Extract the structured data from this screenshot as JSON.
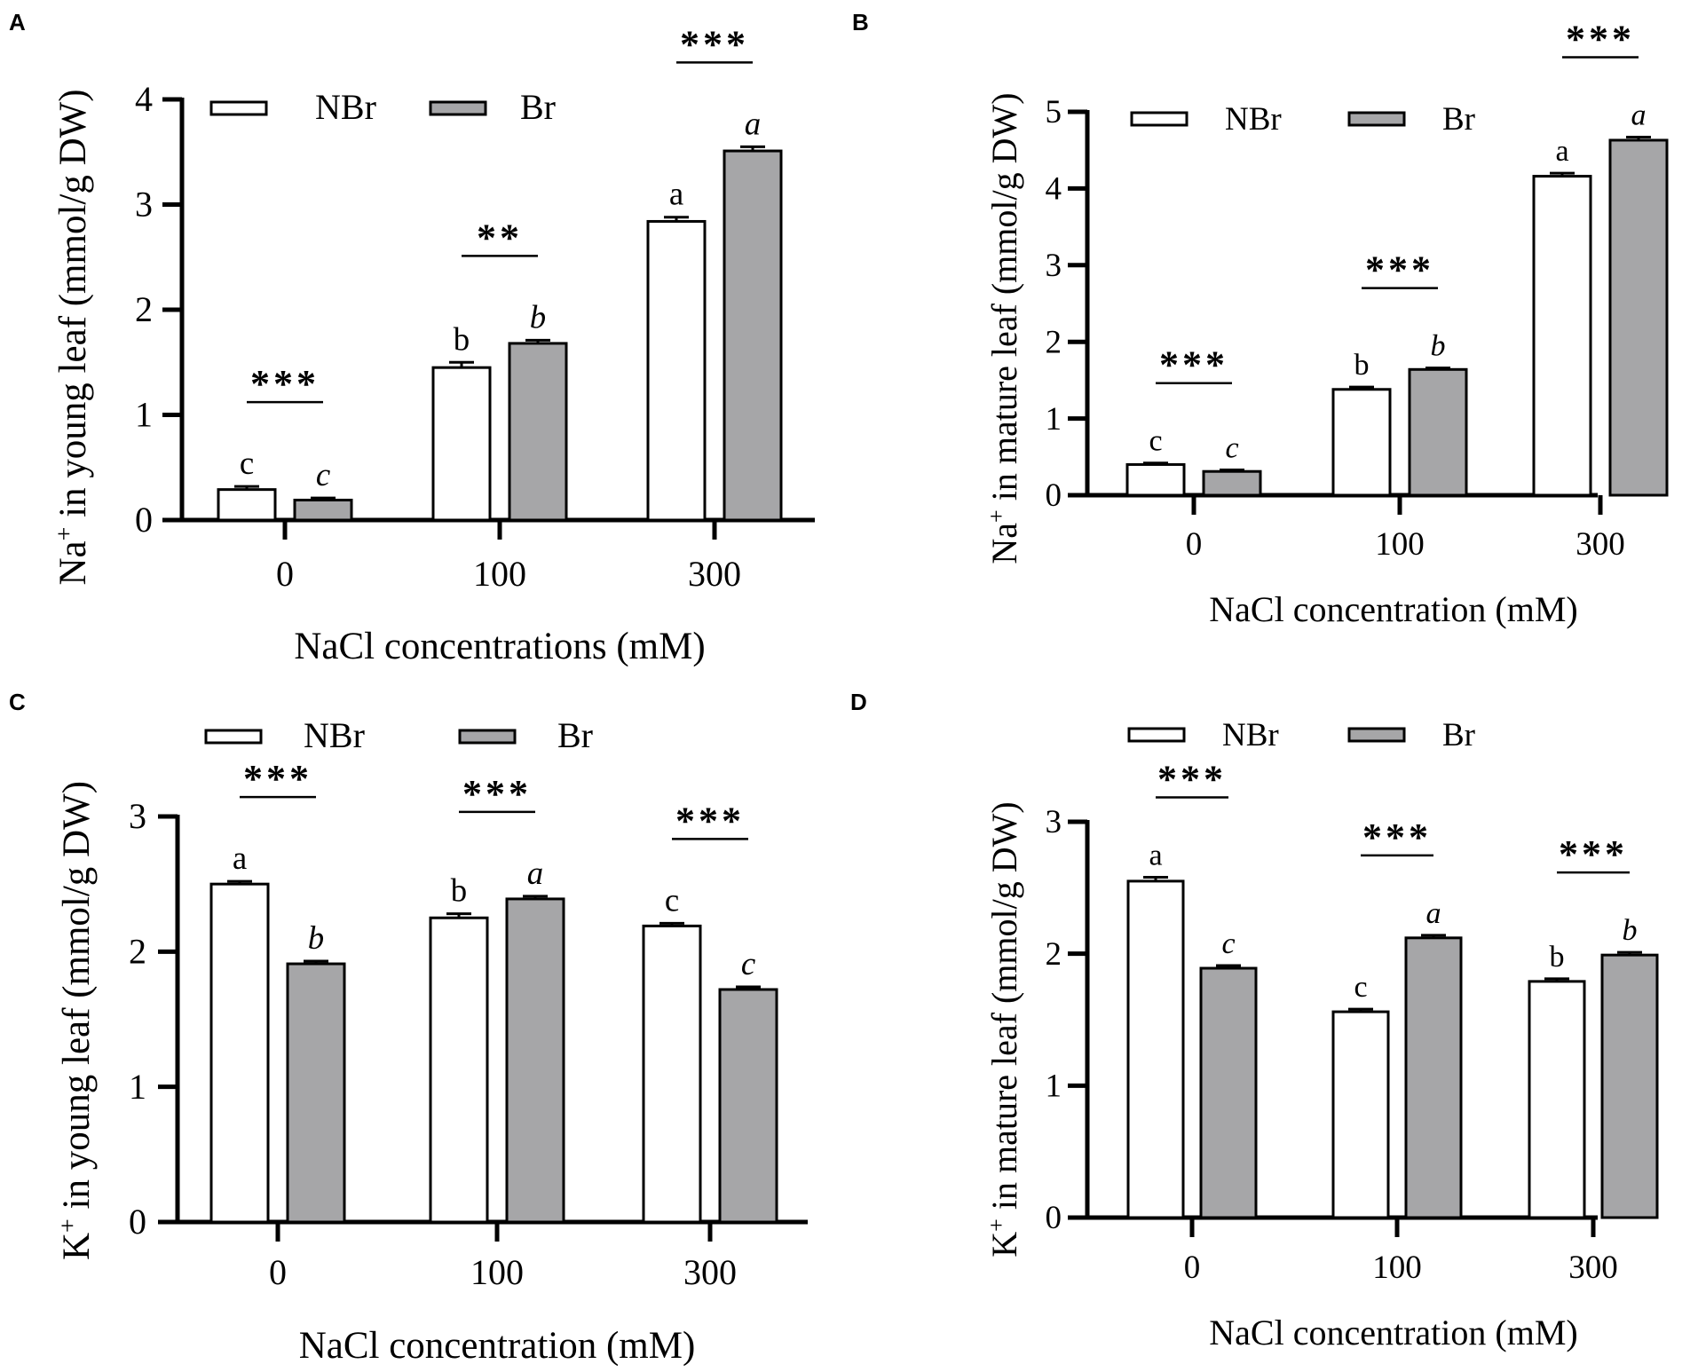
{
  "legend": {
    "series": [
      {
        "name": "NBr",
        "fill": "#ffffff"
      },
      {
        "name": "Br",
        "fill": "#a6a6a8"
      }
    ]
  },
  "chart_data": [
    {
      "panel": "A",
      "type": "bar",
      "title": "",
      "ylabel_prefix": "Na",
      "ylabel_superscript": "+",
      "ylabel_suffix": " in young leaf (mmol/g DW)",
      "xlabel": "NaCl concentrations (mM)",
      "categories": [
        "0",
        "100",
        "300"
      ],
      "ylim": [
        0,
        4
      ],
      "yticks": [
        "0",
        "1",
        "2",
        "3",
        "4"
      ],
      "legend_position": "top-left",
      "series": [
        {
          "name": "NBr",
          "values": [
            0.29,
            1.45,
            2.84
          ],
          "errors": [
            0.03,
            0.05,
            0.04
          ],
          "letters": [
            "c",
            "b",
            "a"
          ],
          "letters_italic": false
        },
        {
          "name": "Br",
          "values": [
            0.19,
            1.68,
            3.51
          ],
          "errors": [
            0.02,
            0.03,
            0.04
          ],
          "letters": [
            "c",
            "b",
            "a"
          ],
          "letters_italic": true
        }
      ],
      "significance": [
        "***",
        "**",
        "***"
      ]
    },
    {
      "panel": "B",
      "type": "bar",
      "title": "",
      "ylabel_prefix": "Na",
      "ylabel_superscript": "+",
      "ylabel_suffix": " in mature leaf (mmol/g DW)",
      "xlabel": "NaCl concentration (mM)",
      "categories": [
        "0",
        "100",
        "300"
      ],
      "ylim": [
        0,
        5
      ],
      "yticks": [
        "0",
        "1",
        "2",
        "3",
        "4",
        "5"
      ],
      "legend_position": "top-left",
      "series": [
        {
          "name": "NBr",
          "values": [
            0.4,
            1.38,
            4.16
          ],
          "errors": [
            0.02,
            0.03,
            0.04
          ],
          "letters": [
            "c",
            "b",
            "a"
          ],
          "letters_italic": false
        },
        {
          "name": "Br",
          "values": [
            0.31,
            1.64,
            4.63
          ],
          "errors": [
            0.02,
            0.02,
            0.04
          ],
          "letters": [
            "c",
            "b",
            "a"
          ],
          "letters_italic": true
        }
      ],
      "significance": [
        "***",
        "***",
        "***"
      ]
    },
    {
      "panel": "C",
      "type": "bar",
      "title": "",
      "ylabel_prefix": "K",
      "ylabel_superscript": "+",
      "ylabel_suffix": " in young leaf (mmol/g DW)",
      "xlabel": "NaCl concentration (mM)",
      "categories": [
        "0",
        "100",
        "300"
      ],
      "ylim": [
        0,
        3
      ],
      "yticks": [
        "0",
        "1",
        "2",
        "3"
      ],
      "legend_position": "top",
      "series": [
        {
          "name": "NBr",
          "values": [
            2.5,
            2.25,
            2.19
          ],
          "errors": [
            0.02,
            0.03,
            0.02
          ],
          "letters": [
            "a",
            "b",
            "c"
          ],
          "letters_italic": false
        },
        {
          "name": "Br",
          "values": [
            1.91,
            2.39,
            1.72
          ],
          "errors": [
            0.02,
            0.02,
            0.02
          ],
          "letters": [
            "b",
            "a",
            "c"
          ],
          "letters_italic": true
        }
      ],
      "significance": [
        "***",
        "***",
        "***"
      ]
    },
    {
      "panel": "D",
      "type": "bar",
      "title": "",
      "ylabel_prefix": "K",
      "ylabel_superscript": "+",
      "ylabel_suffix": " in mature leaf (mmol/g DW)",
      "xlabel": "NaCl concentration (mM)",
      "categories": [
        "0",
        "100",
        "300"
      ],
      "ylim": [
        0,
        3
      ],
      "yticks": [
        "0",
        "1",
        "2",
        "3"
      ],
      "legend_position": "top",
      "series": [
        {
          "name": "NBr",
          "values": [
            2.55,
            1.56,
            1.79
          ],
          "errors": [
            0.03,
            0.02,
            0.02
          ],
          "letters": [
            "a",
            "c",
            "b"
          ],
          "letters_italic": false
        },
        {
          "name": "Br",
          "values": [
            1.89,
            2.12,
            1.99
          ],
          "errors": [
            0.02,
            0.02,
            0.02
          ],
          "letters": [
            "c",
            "a",
            "b"
          ],
          "letters_italic": true
        }
      ],
      "significance": [
        "***",
        "***",
        "***"
      ]
    }
  ]
}
